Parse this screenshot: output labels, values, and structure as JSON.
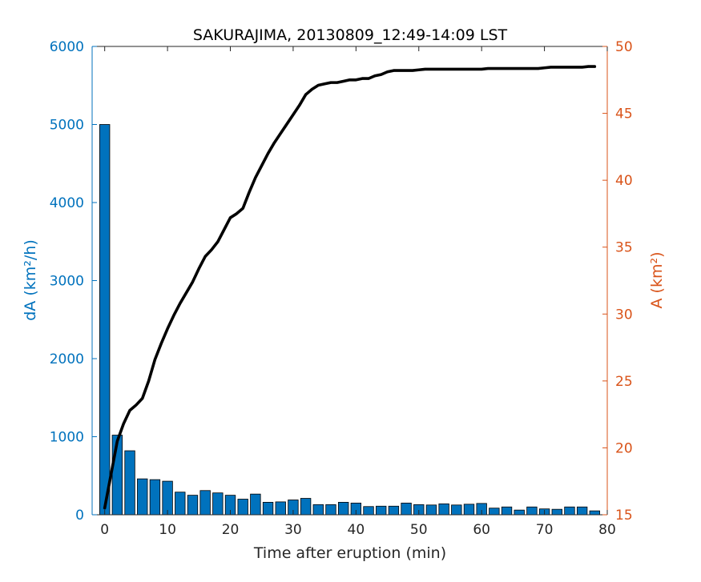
{
  "chart_data": {
    "type": "bar",
    "title": "SAKURAJIMA, 20130809_12:49-14:09 LST",
    "xlabel": "Time after eruption (min)",
    "ylabel_left": "dA (km²/h)",
    "ylabel_right": "A (km²)",
    "xlim": [
      -2,
      80
    ],
    "ylim_left": [
      0,
      6000
    ],
    "ylim_right": [
      15,
      50
    ],
    "x_ticks": [
      0,
      10,
      20,
      30,
      40,
      50,
      60,
      70,
      80
    ],
    "y_left_ticks": [
      0,
      1000,
      2000,
      3000,
      4000,
      5000,
      6000
    ],
    "y_right_ticks": [
      15,
      20,
      25,
      30,
      35,
      40,
      45,
      50
    ],
    "colors": {
      "bars": "#0072BD",
      "left_axis": "#0072BD",
      "right_axis": "#D95319",
      "line": "#000000",
      "frame": "#262626"
    },
    "series": [
      {
        "axis": "left",
        "kind": "bar",
        "x": [
          0,
          2,
          4,
          6,
          8,
          10,
          12,
          14,
          16,
          18,
          20,
          22,
          24,
          26,
          28,
          30,
          32,
          34,
          36,
          38,
          40,
          42,
          44,
          46,
          48,
          50,
          52,
          54,
          56,
          58,
          60,
          62,
          64,
          66,
          68,
          70,
          72,
          74,
          76,
          78
        ],
        "values": [
          5000,
          1020,
          820,
          460,
          450,
          430,
          290,
          250,
          310,
          280,
          250,
          200,
          265,
          160,
          165,
          190,
          210,
          130,
          130,
          160,
          150,
          105,
          110,
          110,
          150,
          130,
          125,
          140,
          125,
          135,
          145,
          85,
          100,
          60,
          100,
          75,
          70,
          100,
          100,
          50
        ]
      },
      {
        "axis": "right",
        "kind": "line",
        "x": [
          0,
          1,
          2,
          3,
          4,
          5,
          6,
          7,
          8,
          9,
          10,
          11,
          12,
          13,
          14,
          15,
          16,
          17,
          18,
          19,
          20,
          21,
          22,
          23,
          24,
          25,
          26,
          27,
          28,
          29,
          30,
          31,
          32,
          33,
          34,
          35,
          36,
          37,
          38,
          39,
          40,
          41,
          42,
          43,
          44,
          45,
          46,
          47,
          48,
          49,
          50,
          51,
          52,
          53,
          54,
          55,
          56,
          57,
          58,
          59,
          60,
          61,
          62,
          63,
          64,
          65,
          66,
          67,
          68,
          69,
          70,
          71,
          72,
          73,
          74,
          75,
          76,
          77,
          78
        ],
        "values": [
          15.5,
          18.0,
          20.5,
          21.8,
          22.8,
          23.2,
          23.7,
          25.0,
          26.6,
          27.8,
          28.9,
          29.9,
          30.8,
          31.6,
          32.4,
          33.4,
          34.3,
          34.8,
          35.4,
          36.3,
          37.2,
          37.5,
          37.9,
          39.1,
          40.2,
          41.1,
          42.0,
          42.8,
          43.5,
          44.2,
          44.9,
          45.6,
          46.4,
          46.8,
          47.1,
          47.2,
          47.3,
          47.3,
          47.4,
          47.5,
          47.5,
          47.6,
          47.6,
          47.8,
          47.9,
          48.1,
          48.2,
          48.2,
          48.2,
          48.2,
          48.25,
          48.3,
          48.3,
          48.3,
          48.3,
          48.3,
          48.3,
          48.3,
          48.3,
          48.3,
          48.3,
          48.35,
          48.35,
          48.35,
          48.35,
          48.35,
          48.35,
          48.35,
          48.35,
          48.35,
          48.4,
          48.45,
          48.45,
          48.45,
          48.45,
          48.45,
          48.45,
          48.5,
          48.5
        ]
      }
    ]
  }
}
